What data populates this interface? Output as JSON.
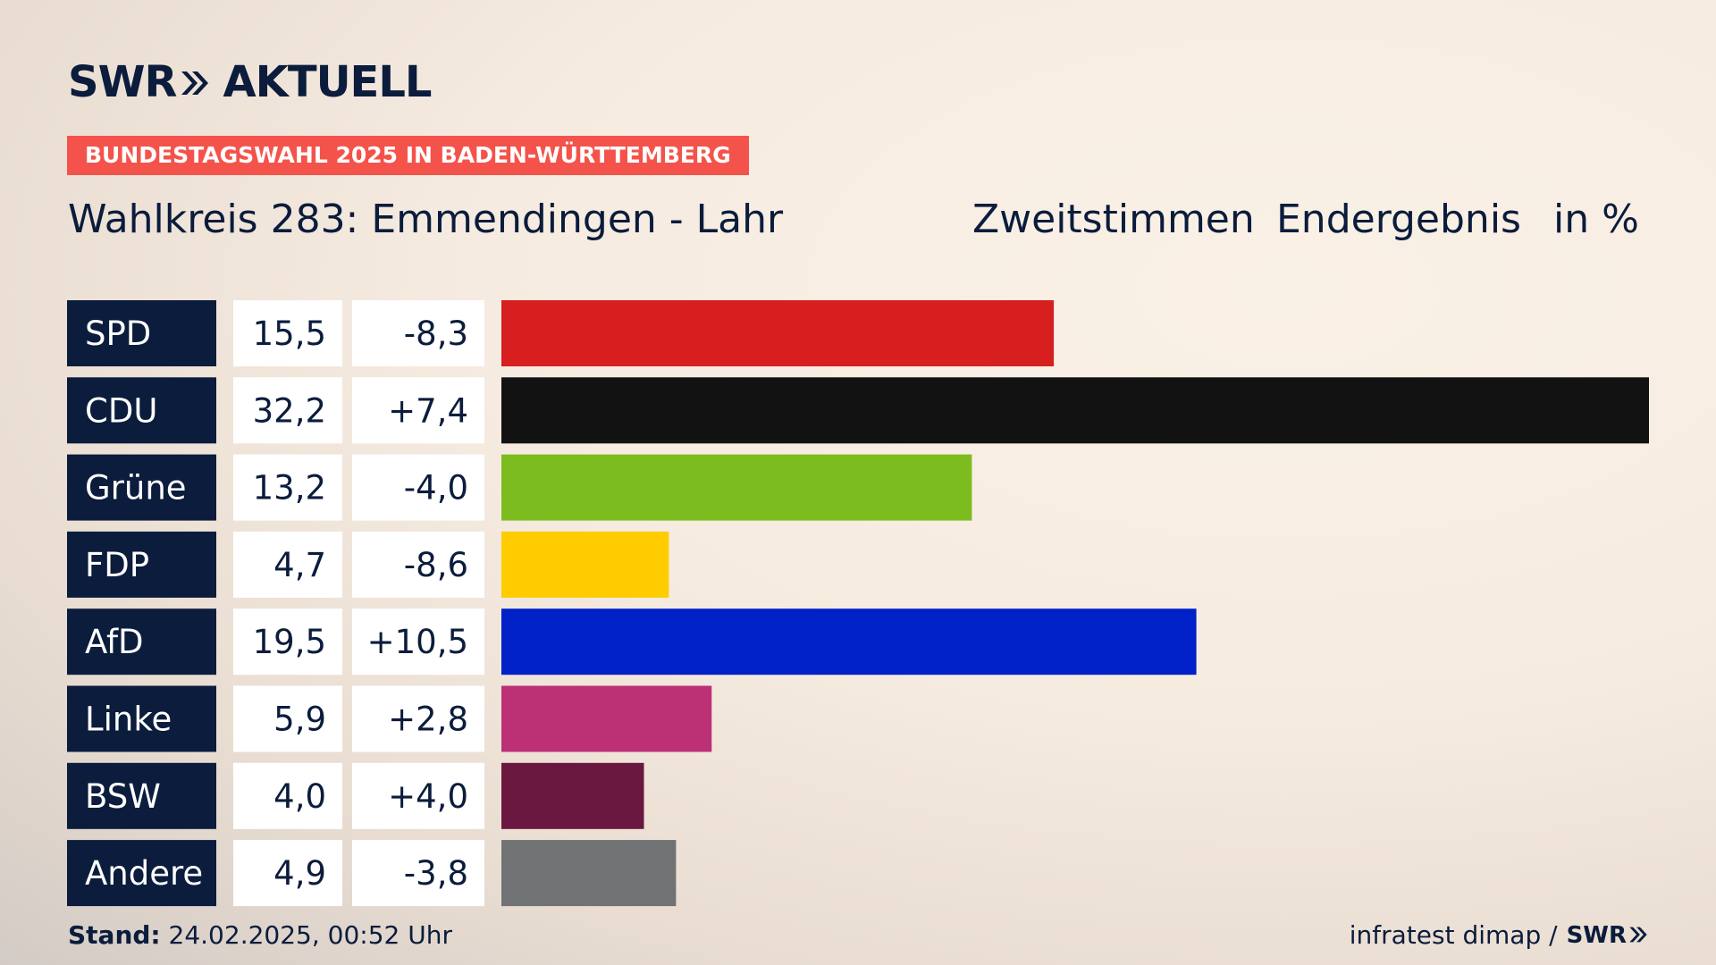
{
  "brand": {
    "logo_text_left": "SWR",
    "logo_text_right": "AKTUELL"
  },
  "banner": "BUNDESTAGSWAHL 2025 IN BADEN-WÜRTTEMBERG",
  "header": {
    "title": "Wahlkreis 283: Emmendingen - Lahr",
    "vote_type": "Zweitstimmen",
    "result_type": "Endergebnis",
    "unit": "in %"
  },
  "chart_data": {
    "type": "bar",
    "orientation": "horizontal",
    "categories": [
      "SPD",
      "CDU",
      "Grüne",
      "FDP",
      "AfD",
      "Linke",
      "BSW",
      "Andere"
    ],
    "values": [
      15.5,
      32.2,
      13.2,
      4.7,
      19.5,
      5.9,
      4.0,
      4.9
    ],
    "value_labels": [
      "15,5",
      "32,2",
      "13,2",
      "4,7",
      "19,5",
      "5,9",
      "4,0",
      "4,9"
    ],
    "changes": [
      "-8,3",
      "+7,4",
      "-4,0",
      "-8,6",
      "+10,5",
      "+2,8",
      "+4,0",
      "-3,8"
    ],
    "colors": [
      "#d71f1f",
      "#121212",
      "#7cbc1e",
      "#ffcc00",
      "#0021c7",
      "#bc3075",
      "#6a1840",
      "#707274"
    ],
    "xlim": [
      0,
      32.2
    ],
    "grid": false,
    "legend": "none"
  },
  "footer": {
    "stand_label": "Stand:",
    "stand_value": "24.02.2025, 00:52 Uhr",
    "source": "infratest dimap /",
    "source_brand": "SWR"
  }
}
